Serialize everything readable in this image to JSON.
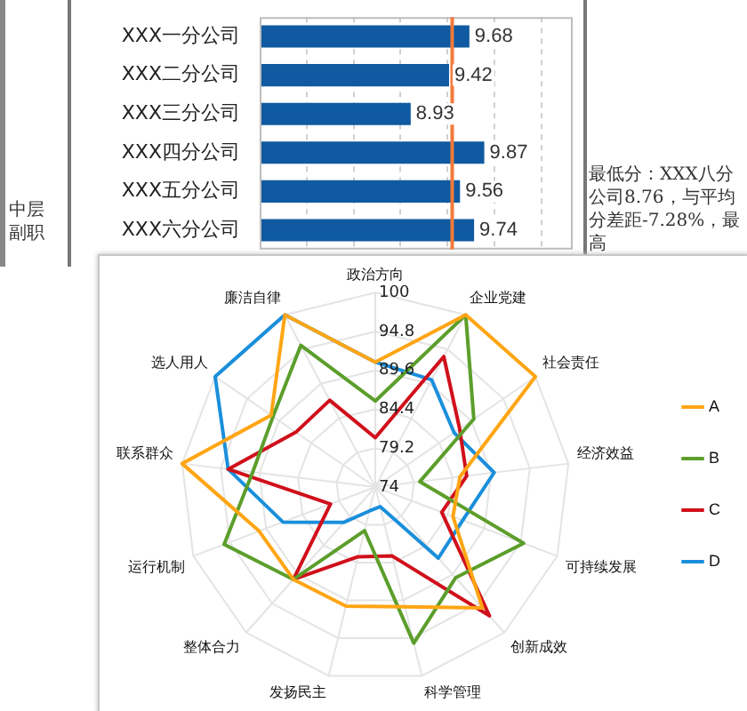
{
  "chart_data": [
    {
      "type": "bar",
      "orientation": "horizontal",
      "categories": [
        "XXX一分公司",
        "XXX二分公司",
        "XXX三分公司",
        "XXX四分公司",
        "XXX五分公司",
        "XXX六分公司"
      ],
      "values": [
        9.68,
        9.42,
        8.93,
        9.87,
        9.56,
        9.74
      ],
      "color": "#0f5aa0",
      "data_labels": true,
      "xlim": [
        7,
        11
      ],
      "xticks": [
        {
          "value": 7.6,
          "label": null
        },
        {
          "value": 8.2,
          "label": null
        },
        {
          "value": 8.8,
          "label": null
        },
        {
          "value": 9.4,
          "label": null
        },
        {
          "value": 10,
          "label": null
        },
        {
          "value": 10.6,
          "label": null
        }
      ],
      "grid": "x",
      "tick_labels": "y",
      "ref_lines": [
        {
          "axis": "x",
          "value": 9.46,
          "color": "#f4793b"
        }
      ],
      "annotations": [
        "中层副职",
        "最低分：XXX八分公司8.76，与平均分差距-7.28%，最高"
      ]
    },
    {
      "type": "radar",
      "categories": [
        "政治方向",
        "企业党建",
        "社会责任",
        "经济效益",
        "可持续发展",
        "创新成效",
        "科学管理",
        "发扬民主",
        "整体合力",
        "运行机制",
        "联系群众",
        "选人用人",
        "廉洁自律"
      ],
      "series": [
        {
          "name": "A",
          "color": "#ffa514",
          "values": [
            90.7,
            100,
            100,
            85.4,
            85.1,
            95.6,
            90.5,
            90.4,
            90.5,
            90.6,
            100,
            90.9,
            100
          ]
        },
        {
          "name": "B",
          "color": "#5c9e2b",
          "values": [
            85.5,
            100,
            90,
            80,
            95.2,
            90.2,
            95.5,
            80,
            90.5,
            95.6,
            90.5,
            90.6,
            95.4
          ]
        },
        {
          "name": "C",
          "color": "#d0101b",
          "values": [
            80.6,
            93.7,
            87.7,
            86.3,
            83.5,
            97,
            83.5,
            83.6,
            90.5,
            80.4,
            93.8,
            86.9,
            87.1
          ]
        },
        {
          "name": "D",
          "color": "#1a8fdb",
          "values": [
            90.7,
            90.2,
            86.8,
            90,
            86.5,
            86.7,
            76.7,
            77.3,
            80.3,
            87.2,
            93.8,
            100,
            100
          ]
        }
      ],
      "ylim": [
        74,
        100
      ],
      "yticks": [
        74,
        79.2,
        84.4,
        89.6,
        94.8,
        100
      ],
      "grid": true,
      "legend": "right",
      "marker": "none"
    }
  ]
}
